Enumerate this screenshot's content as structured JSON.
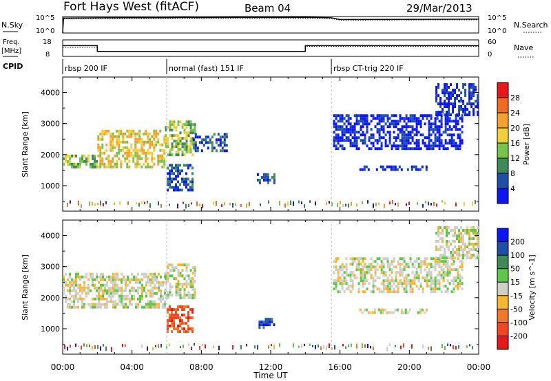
{
  "header": {
    "station": "Fort Hays West (fitACF)",
    "beam": "Beam 04",
    "date": "29/Mar/2013"
  },
  "top_panels": {
    "nsky_label": "N.Sky",
    "nsky_tick_top": "10^5",
    "nsky_tick_bottom": "10^0",
    "nsearch_label": "N.Search",
    "freq_label": "Freq.",
    "freq_unit": "[MHz]",
    "freq_tick_top": "18",
    "freq_tick_bottom": "8",
    "nave_tick_top": "60",
    "nave_tick_bottom": "0",
    "nave_label": "Nave",
    "cpid_label": "CPID"
  },
  "cpid_segments": [
    {
      "label": "rbsp 200 IF",
      "start_h": 0,
      "end_h": 6
    },
    {
      "label": "normal (fast) 151 IF",
      "start_h": 6,
      "end_h": 15.5
    },
    {
      "label": "rbsp CT-trig 220 IF",
      "start_h": 15.5,
      "end_h": 24
    }
  ],
  "chart_data": [
    {
      "type": "line",
      "panel": "noise",
      "x_label": "",
      "series": [
        {
          "name": "N.Sky",
          "x": [
            0,
            0.05,
            2,
            4,
            6,
            7,
            8,
            10,
            12,
            14,
            15.5,
            16,
            18,
            20,
            22,
            24
          ],
          "y": [
            1,
            35000,
            40000,
            42000,
            45000,
            48000,
            46000,
            50000,
            52000,
            55000,
            40000,
            12000,
            13000,
            14000,
            15000,
            16000
          ]
        },
        {
          "name": "N.Search",
          "x": [
            0,
            0.05,
            4,
            8,
            12,
            15.5,
            16,
            20,
            24
          ],
          "y": [
            1,
            20000,
            25000,
            27000,
            30000,
            25000,
            8000,
            9000,
            10000
          ]
        }
      ]
    },
    {
      "type": "line",
      "panel": "freq_nave",
      "series": [
        {
          "name": "Freq.",
          "x": [
            0,
            2,
            2,
            14,
            14,
            24
          ],
          "y": [
            14.5,
            14.5,
            11,
            11,
            14.5,
            14.5
          ]
        },
        {
          "name": "Nave",
          "x": [
            0,
            2,
            2,
            14,
            14,
            24
          ],
          "y": [
            33,
            33,
            18,
            18,
            36,
            36
          ]
        }
      ]
    },
    {
      "type": "heatmap",
      "panel": "power",
      "ylabel": "Slant Range [km]",
      "ylim": [
        180,
        4500
      ],
      "yticks": [
        "1000",
        "2000",
        "3000",
        "4000"
      ],
      "colorbar_label": "Power [dB]",
      "colorbar_ticks": [
        "4",
        "8",
        "12",
        "16",
        "20",
        "24",
        "28"
      ],
      "colorbar_colors": [
        "#0b16f2",
        "#1f4fa8",
        "#3f8a58",
        "#76c44a",
        "#f2d03a",
        "#f6a030",
        "#f26a20",
        "#e81818"
      ],
      "ranges": [
        [
          0,
          30
        ],
        [
          3.5,
          30
        ]
      ],
      "regions": [
        {
          "t0": 0,
          "t1": 2.0,
          "r0": 1600,
          "r1": 2000,
          "c": 3
        },
        {
          "t0": 2.0,
          "t1": 5.9,
          "r0": 1600,
          "r1": 2800,
          "c": 4
        },
        {
          "t0": 5.9,
          "t1": 7.6,
          "r0": 2000,
          "r1": 3100,
          "c": 3
        },
        {
          "t0": 6.0,
          "t1": 7.5,
          "r0": 850,
          "r1": 1700,
          "c": 1
        },
        {
          "t0": 7.5,
          "t1": 9.5,
          "r0": 2100,
          "r1": 2700,
          "c": 1
        },
        {
          "t0": 11.2,
          "t1": 12.2,
          "r0": 1100,
          "r1": 1400,
          "c": 1
        },
        {
          "t0": 15.6,
          "t1": 23.0,
          "r0": 2200,
          "r1": 3300,
          "c": 0
        },
        {
          "t0": 17.0,
          "t1": 21.0,
          "r0": 1500,
          "r1": 1650,
          "c": 0
        },
        {
          "t0": 21.5,
          "t1": 24.0,
          "r0": 3300,
          "r1": 4300,
          "c": 0
        }
      ]
    },
    {
      "type": "heatmap",
      "panel": "velocity",
      "xlabel": "Time UT",
      "ylabel": "Slant Range [km]",
      "ylim": [
        180,
        4500
      ],
      "yticks": [
        "1000",
        "2000",
        "3000",
        "4000"
      ],
      "xticks": [
        "00:00",
        "04:00",
        "08:00",
        "12:00",
        "16:00",
        "20:00",
        "00:00"
      ],
      "colorbar_label": "Velocity [m s^-1]",
      "colorbar_ticks": [
        "-200",
        "-100",
        "-50",
        "-15",
        "15",
        "50",
        "100",
        "200"
      ],
      "colorbar_colors": [
        "#e81818",
        "#f04820",
        "#f27828",
        "#f6b830",
        "#cfcfc8",
        "#5cc84a",
        "#3f8a58",
        "#1f4fa8",
        "#0b16f2"
      ],
      "regions": [
        {
          "t0": 0,
          "t1": 5.9,
          "r0": 1700,
          "r1": 2800,
          "c": 4
        },
        {
          "t0": 5.9,
          "t1": 7.6,
          "r0": 2000,
          "r1": 3100,
          "c": 4
        },
        {
          "t0": 6.0,
          "t1": 7.5,
          "r0": 950,
          "r1": 1750,
          "c": 1
        },
        {
          "t0": 11.3,
          "t1": 12.3,
          "r0": 1050,
          "r1": 1350,
          "c": 7
        },
        {
          "t0": 15.6,
          "t1": 23.0,
          "r0": 2200,
          "r1": 3300,
          "c": 4
        },
        {
          "t0": 17.0,
          "t1": 21.0,
          "r0": 1500,
          "r1": 1650,
          "c": 4
        },
        {
          "t0": 21.5,
          "t1": 24.0,
          "r0": 3300,
          "r1": 4300,
          "c": 4
        }
      ]
    }
  ]
}
